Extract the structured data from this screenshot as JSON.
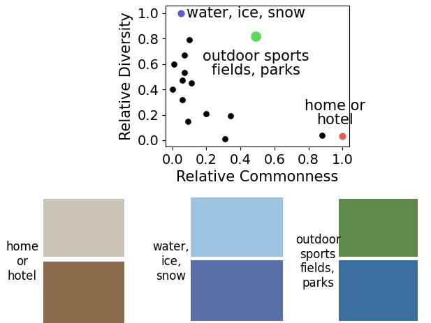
{
  "chart_data": {
    "type": "scatter",
    "x_label": "Relative Commonness",
    "y_label": "Relative Diversity",
    "xlim": [
      -0.04,
      1.04
    ],
    "ylim": [
      -0.05,
      1.06
    ],
    "xticks": [
      0.0,
      0.2,
      0.4,
      0.6,
      0.8,
      1.0
    ],
    "yticks": [
      0.0,
      0.2,
      0.4,
      0.6,
      0.8,
      1.0
    ],
    "grid": false,
    "series": [
      {
        "color": "#000000",
        "marker": "circle",
        "x": [
          0.1,
          0.07,
          0.01,
          0.07,
          0.06,
          0.11,
          0.0,
          0.06,
          0.2,
          0.34,
          0.09,
          0.31,
          0.88
        ],
        "y": [
          0.79,
          0.67,
          0.6,
          0.53,
          0.47,
          0.45,
          0.4,
          0.32,
          0.21,
          0.19,
          0.15,
          0.01,
          0.04
        ]
      },
      {
        "color": "#5a5ad8",
        "marker": "circle",
        "label": "water, ice, snow",
        "x": [
          0.05
        ],
        "y": [
          1.0
        ]
      },
      {
        "color": "#5cd65c",
        "marker": "circle",
        "label": "outdoor sports\nfields, parks",
        "x": [
          0.49
        ],
        "y": [
          0.82
        ]
      },
      {
        "color": "#e0604f",
        "marker": "circle",
        "label": "home or\nhotel",
        "x": [
          1.0
        ],
        "y": [
          0.03
        ]
      }
    ]
  },
  "photo_groups": [
    {
      "label": "home\nor\nhotel"
    },
    {
      "label": "water,\nice,\nsnow"
    },
    {
      "label": "outdoor\nsports\nfields,\nparks"
    }
  ]
}
